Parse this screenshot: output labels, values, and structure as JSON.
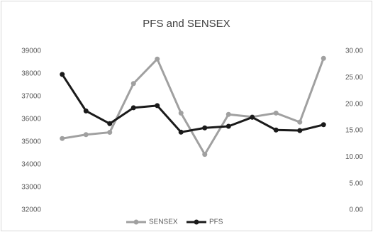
{
  "chart_data": {
    "type": "line",
    "title": "PFS and SENSEX",
    "categories": [
      null,
      null,
      null,
      null,
      null,
      null,
      null,
      null,
      null,
      null,
      null,
      null
    ],
    "series": [
      {
        "name": "SENSEX",
        "color": "#a0a0a0",
        "values": [
          35150,
          35320,
          35420,
          37570,
          38650,
          36270,
          34450,
          36210,
          36100,
          36270,
          35870,
          38680
        ]
      },
      {
        "name": "PFS",
        "color": "#1a1a1a",
        "axis": "y2",
        "values": [
          25.6,
          18.7,
          16.3,
          19.3,
          19.7,
          14.7,
          15.5,
          15.8,
          17.5,
          15.1,
          15.0,
          16.1
        ]
      }
    ],
    "ylim": [
      32000,
      39000
    ],
    "yticks": [
      32000,
      33000,
      34000,
      35000,
      36000,
      37000,
      38000,
      39000
    ],
    "y2lim": [
      0,
      30
    ],
    "y2ticks": [
      {
        "value": 0,
        "label": "0.00"
      },
      {
        "value": 5,
        "label": "5.00"
      },
      {
        "value": 10,
        "label": "10.00"
      },
      {
        "value": 15,
        "label": "15.00"
      },
      {
        "value": 20,
        "label": "20.00"
      },
      {
        "value": 25,
        "label": "25.00"
      },
      {
        "value": 30,
        "label": "30.00"
      }
    ],
    "grid": false,
    "legend": "bottom"
  }
}
